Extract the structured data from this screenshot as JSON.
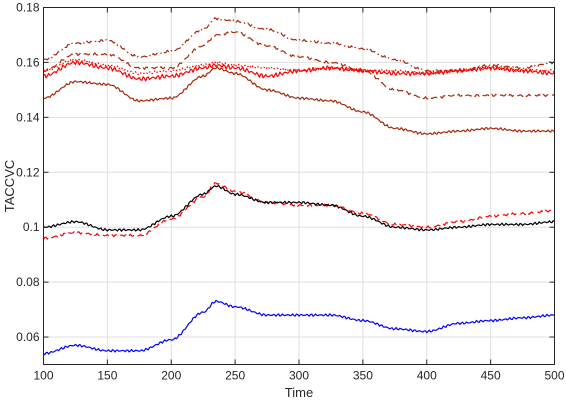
{
  "chart_data": {
    "type": "line",
    "title": "",
    "xlabel": "Time",
    "ylabel": "TACCVC",
    "xlim": [
      100,
      500
    ],
    "ylim": [
      0.05,
      0.18
    ],
    "xticks": [
      100,
      150,
      200,
      250,
      300,
      350,
      400,
      450,
      500
    ],
    "yticks": [
      0.06,
      0.08,
      0.1,
      0.12,
      0.14,
      0.16,
      0.18
    ],
    "xtick_labels": [
      "100",
      "150",
      "200",
      "250",
      "300",
      "350",
      "400",
      "450",
      "500"
    ],
    "ytick_labels": [
      "0.06",
      "0.08",
      "0.1",
      "0.12",
      "0.14",
      "0.16",
      "0.18"
    ],
    "grid": true,
    "legend": "none",
    "x": [
      100,
      125,
      150,
      175,
      200,
      225,
      235,
      250,
      275,
      300,
      325,
      350,
      375,
      400,
      425,
      450,
      475,
      500
    ],
    "series": [
      {
        "color": "#a52a0a",
        "style": "dashdot",
        "values": [
          0.161,
          0.167,
          0.168,
          0.162,
          0.164,
          0.172,
          0.176,
          0.175,
          0.172,
          0.168,
          0.167,
          0.165,
          0.161,
          0.157,
          0.157,
          0.159,
          0.158,
          0.16
        ]
      },
      {
        "color": "#a52a0a",
        "style": "dashed",
        "values": [
          0.157,
          0.163,
          0.163,
          0.158,
          0.158,
          0.166,
          0.17,
          0.171,
          0.166,
          0.162,
          0.16,
          0.157,
          0.15,
          0.147,
          0.148,
          0.148,
          0.148,
          0.148
        ]
      },
      {
        "color": "#ff0000",
        "style": "dotted",
        "values": [
          0.157,
          0.161,
          0.159,
          0.156,
          0.157,
          0.159,
          0.16,
          0.159,
          0.158,
          0.157,
          0.158,
          0.157,
          0.157,
          0.156,
          0.157,
          0.158,
          0.157,
          0.157
        ]
      },
      {
        "color": "#ff0000",
        "style": "solid",
        "values": [
          0.155,
          0.16,
          0.158,
          0.154,
          0.155,
          0.158,
          0.159,
          0.158,
          0.155,
          0.157,
          0.158,
          0.157,
          0.156,
          0.156,
          0.157,
          0.158,
          0.157,
          0.156
        ]
      },
      {
        "color": "#a52a0a",
        "style": "solid",
        "values": [
          0.147,
          0.153,
          0.152,
          0.146,
          0.147,
          0.155,
          0.158,
          0.156,
          0.15,
          0.147,
          0.146,
          0.142,
          0.136,
          0.134,
          0.135,
          0.136,
          0.135,
          0.135
        ]
      },
      {
        "color": "#ff0000",
        "style": "dashed",
        "values": [
          0.096,
          0.098,
          0.097,
          0.097,
          0.103,
          0.111,
          0.116,
          0.113,
          0.109,
          0.108,
          0.108,
          0.105,
          0.101,
          0.1,
          0.102,
          0.104,
          0.105,
          0.106
        ]
      },
      {
        "color": "#000000",
        "style": "solid",
        "values": [
          0.1,
          0.102,
          0.099,
          0.099,
          0.104,
          0.112,
          0.115,
          0.112,
          0.109,
          0.109,
          0.108,
          0.104,
          0.1,
          0.099,
          0.1,
          0.101,
          0.101,
          0.102
        ]
      },
      {
        "color": "#0000ff",
        "style": "solid",
        "values": [
          0.054,
          0.057,
          0.055,
          0.055,
          0.059,
          0.069,
          0.073,
          0.071,
          0.068,
          0.068,
          0.068,
          0.066,
          0.063,
          0.062,
          0.065,
          0.066,
          0.067,
          0.068
        ]
      }
    ]
  }
}
